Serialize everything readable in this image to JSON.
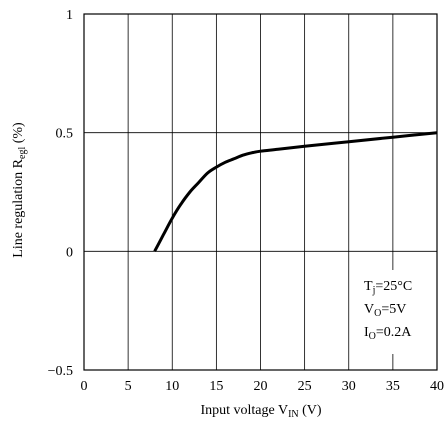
{
  "chart_data": {
    "type": "line",
    "xlabel": {
      "main": "Input voltage V",
      "sub": "IN",
      "unit": " (V)"
    },
    "ylabel": {
      "main": "Line regulation R",
      "sub": "egl",
      "unit": " (%)"
    },
    "xlim": [
      0,
      40
    ],
    "ylim": [
      -0.5,
      1
    ],
    "x_ticks": [
      {
        "value": 0,
        "label": "0"
      },
      {
        "value": 5,
        "label": "5"
      },
      {
        "value": 10,
        "label": "10"
      },
      {
        "value": 15,
        "label": "15"
      },
      {
        "value": 20,
        "label": "20"
      },
      {
        "value": 25,
        "label": "25"
      },
      {
        "value": 30,
        "label": "30"
      },
      {
        "value": 35,
        "label": "35"
      },
      {
        "value": 40,
        "label": "40"
      }
    ],
    "y_ticks": [
      {
        "value": -0.5,
        "label": "−0.5"
      },
      {
        "value": 0,
        "label": "0"
      },
      {
        "value": 0.5,
        "label": "0.5"
      },
      {
        "value": 1,
        "label": "1"
      }
    ],
    "grid": true,
    "conditions": [
      {
        "main": "T",
        "sub": "j",
        "rest": "=25°C"
      },
      {
        "main": "V",
        "sub": "O",
        "rest": "=5V"
      },
      {
        "main": "I",
        "sub": "O",
        "rest": "=0.2A"
      }
    ],
    "conditions_placement": "bottom-right",
    "series": [
      {
        "x": [
          8,
          9,
          10,
          11,
          12,
          13,
          14,
          15,
          16,
          17,
          18,
          19,
          20,
          22,
          25,
          30,
          35,
          40
        ],
        "y": [
          0.0,
          0.07,
          0.14,
          0.2,
          0.25,
          0.29,
          0.33,
          0.355,
          0.375,
          0.39,
          0.405,
          0.415,
          0.422,
          0.43,
          0.443,
          0.462,
          0.481,
          0.5
        ],
        "color": "#000000"
      }
    ]
  }
}
